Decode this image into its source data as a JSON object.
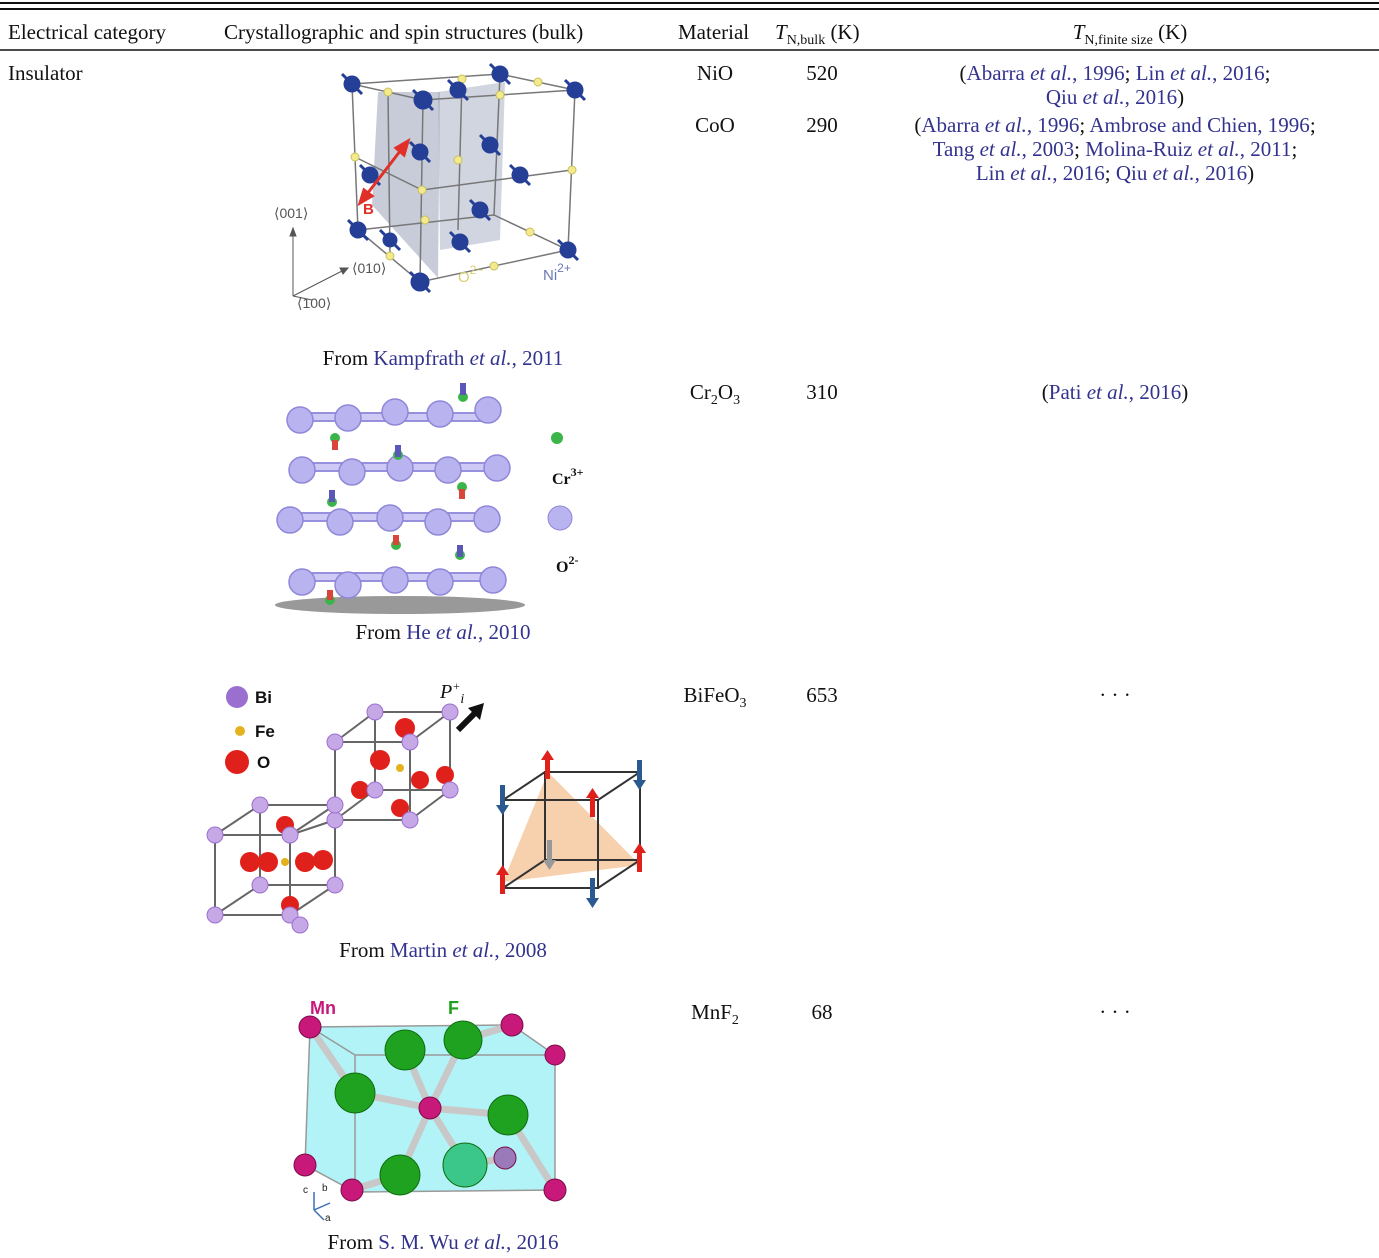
{
  "header": [
    [
      [
        "Electrical category",
        "plain"
      ]
    ],
    [
      [
        "Crystallographic and spin structures (bulk)",
        "plain"
      ]
    ],
    [
      [
        "Material",
        "plain"
      ]
    ],
    [
      [
        "T",
        "em"
      ],
      [
        "N,bulk",
        "sub"
      ],
      [
        " (K)",
        "plain"
      ]
    ],
    [
      [
        "T",
        "em"
      ],
      [
        "N,finite size",
        "sub"
      ],
      [
        " (K)",
        "plain"
      ]
    ]
  ],
  "rows": [
    {
      "category": "Insulator",
      "figure_labels": [
        [
          [
            "⟨001⟩",
            "plain"
          ]
        ],
        [
          [
            "⟨010⟩",
            "plain"
          ]
        ],
        [
          [
            "⟨100⟩",
            "plain"
          ]
        ],
        [
          [
            "B",
            "plain"
          ]
        ],
        [
          [
            "O",
            "plain"
          ],
          [
            "2−",
            "sup"
          ]
        ],
        [
          [
            "Ni",
            "plain"
          ],
          [
            "2+",
            "sup"
          ]
        ]
      ],
      "caption": [
        [
          "From ",
          "plain"
        ],
        [
          "Kampfrath ",
          "link"
        ],
        [
          "et al.",
          "link-em"
        ],
        [
          ", 2011",
          "link"
        ]
      ],
      "materials": [
        {
          "name": [
            [
              "NiO",
              "plain"
            ]
          ],
          "tn_bulk": 520,
          "tn_finite": [
            [
              "(",
              "plain"
            ],
            [
              "Abarra ",
              "link"
            ],
            [
              "et al.",
              "link-em"
            ],
            [
              ", 1996",
              "link"
            ],
            [
              "; ",
              "plain"
            ],
            [
              "Lin ",
              "link"
            ],
            [
              "et al.",
              "link-em"
            ],
            [
              ", 2016",
              "link"
            ],
            [
              ";\n",
              "plain"
            ],
            [
              "Qiu ",
              "link"
            ],
            [
              "et al.",
              "link-em"
            ],
            [
              ", 2016",
              "link"
            ],
            [
              ")",
              "plain"
            ]
          ]
        },
        {
          "name": [
            [
              "CoO",
              "plain"
            ]
          ],
          "tn_bulk": 290,
          "tn_finite": [
            [
              "(",
              "plain"
            ],
            [
              "Abarra ",
              "link"
            ],
            [
              "et al.",
              "link-em"
            ],
            [
              ", 1996",
              "link"
            ],
            [
              "; ",
              "plain"
            ],
            [
              "Ambrose and Chien, 1996",
              "link"
            ],
            [
              ";\n",
              "plain"
            ],
            [
              "Tang ",
              "link"
            ],
            [
              "et al.",
              "link-em"
            ],
            [
              ", 2003",
              "link"
            ],
            [
              "; ",
              "plain"
            ],
            [
              "Molina-Ruiz ",
              "link"
            ],
            [
              "et al.",
              "link-em"
            ],
            [
              ", 2011",
              "link"
            ],
            [
              ";\n",
              "plain"
            ],
            [
              "Lin ",
              "link"
            ],
            [
              "et al.",
              "link-em"
            ],
            [
              ", 2016",
              "link"
            ],
            [
              "; ",
              "plain"
            ],
            [
              "Qiu ",
              "link"
            ],
            [
              "et al.",
              "link-em"
            ],
            [
              ", 2016",
              "link"
            ],
            [
              ")",
              "plain"
            ]
          ]
        }
      ]
    },
    {
      "figure_labels": [
        [
          [
            "Cr",
            "plain"
          ],
          [
            "3+",
            "sup"
          ]
        ],
        [
          [
            "O",
            "plain"
          ],
          [
            "2-",
            "sup"
          ]
        ]
      ],
      "caption": [
        [
          "From ",
          "plain"
        ],
        [
          "He ",
          "link"
        ],
        [
          "et al.",
          "link-em"
        ],
        [
          ", 2010",
          "link"
        ]
      ],
      "materials": [
        {
          "name": [
            [
              "Cr",
              "plain"
            ],
            [
              "2",
              "sub"
            ],
            [
              "O",
              "plain"
            ],
            [
              "3",
              "sub"
            ]
          ],
          "tn_bulk": 310,
          "tn_finite": [
            [
              "(",
              "plain"
            ],
            [
              "Pati ",
              "link"
            ],
            [
              "et al.",
              "link-em"
            ],
            [
              ", 2016",
              "link"
            ],
            [
              ")",
              "plain"
            ]
          ]
        }
      ]
    },
    {
      "figure_labels": [
        [
          [
            "Bi",
            "plain"
          ]
        ],
        [
          [
            "Fe",
            "plain"
          ]
        ],
        [
          [
            "O",
            "plain"
          ]
        ],
        [
          [
            "P",
            "plain"
          ],
          [
            "+",
            "sup"
          ],
          [
            "i",
            "sub"
          ]
        ]
      ],
      "caption": [
        [
          "From ",
          "plain"
        ],
        [
          "Martin ",
          "link"
        ],
        [
          "et al.",
          "link-em"
        ],
        [
          ", 2008",
          "link"
        ]
      ],
      "materials": [
        {
          "name": [
            [
              "BiFeO",
              "plain"
            ],
            [
              "3",
              "sub"
            ]
          ],
          "tn_bulk": 653,
          "tn_finite": [
            [
              "· · ·",
              "plain"
            ]
          ]
        }
      ]
    },
    {
      "figure_labels": [
        [
          [
            "Mn",
            "plain"
          ]
        ],
        [
          [
            "F",
            "plain"
          ]
        ],
        [
          [
            "c",
            "plain"
          ]
        ],
        [
          [
            "b",
            "plain"
          ]
        ],
        [
          [
            "a",
            "plain"
          ]
        ]
      ],
      "caption": [
        [
          "From ",
          "plain"
        ],
        [
          "S. M. Wu ",
          "link"
        ],
        [
          "et al.",
          "link-em"
        ],
        [
          ", 2016",
          "link"
        ]
      ],
      "materials": [
        {
          "name": [
            [
              "MnF",
              "plain"
            ],
            [
              "2",
              "sub"
            ]
          ],
          "tn_bulk": 68,
          "tn_finite": [
            [
              "· · ·",
              "plain"
            ]
          ]
        }
      ]
    }
  ]
}
